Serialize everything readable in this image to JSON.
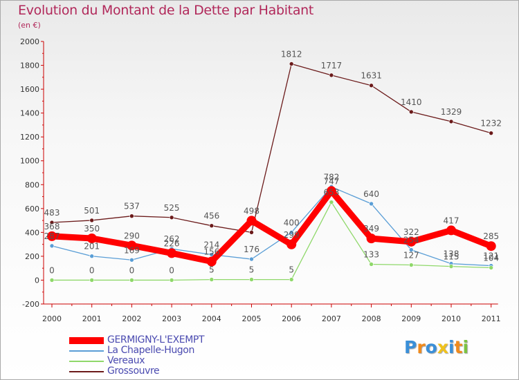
{
  "colors": {
    "title": "#b1285a",
    "axis": "#cc0000",
    "label": "#555555",
    "legend_text": "#4a4ab0"
  },
  "chart_data": {
    "type": "line",
    "title": "Evolution du Montant de la Dette par Habitant",
    "subtitle": "(en €)",
    "xlabel": "",
    "ylabel": "",
    "categories": [
      "2000",
      "2001",
      "2002",
      "2003",
      "2004",
      "2005",
      "2006",
      "2007",
      "2008",
      "2009",
      "2010",
      "2011"
    ],
    "ylim": [
      -200,
      2000
    ],
    "yticks": [
      "-200",
      "0",
      "200",
      "400",
      "600",
      "800",
      "1000",
      "1200",
      "1400",
      "1600",
      "1800",
      "2000"
    ],
    "grid": false,
    "legend_position": "bottom-left",
    "series": [
      {
        "name": "Grossouvre",
        "color": "#6b1a1a",
        "values": [
          483,
          501,
          537,
          525,
          456,
          400,
          1812,
          1717,
          1631,
          1410,
          1329,
          1232
        ],
        "labels": [
          "483",
          "501",
          "537",
          "525",
          "456",
          "",
          "1812",
          "1717",
          "1631",
          "1410",
          "1329",
          "1232"
        ]
      },
      {
        "name": "La Chapelle-Hugon",
        "color": "#5a9ed6",
        "values": [
          287,
          201,
          169,
          262,
          214,
          176,
          400,
          782,
          640,
          254,
          138,
          121
        ],
        "labels": [
          "287",
          "201",
          "169",
          "262",
          "214",
          "176",
          "400",
          "782",
          "640",
          "254",
          "138",
          "121"
        ]
      },
      {
        "name": "Vereaux",
        "color": "#8fd86a",
        "values": [
          0,
          0,
          0,
          0,
          5,
          5,
          5,
          653,
          133,
          127,
          115,
          104
        ],
        "labels": [
          "0",
          "0",
          "0",
          "0",
          "5",
          "5",
          "5",
          "653",
          "133",
          "127",
          "115",
          "104"
        ]
      },
      {
        "name": "GERMIGNY-L'EXEMPT",
        "color": "#ff0000",
        "values": [
          368,
          350,
          290,
          226,
          156,
          498,
          299,
          747,
          349,
          322,
          417,
          285
        ],
        "labels": [
          "368",
          "350",
          "290",
          "226",
          "156",
          "498",
          "299",
          "747",
          "349",
          "322",
          "417",
          "285"
        ]
      }
    ]
  },
  "legend": {
    "items": [
      {
        "label": "GERMIGNY-L'EXEMPT",
        "color": "#ff0000"
      },
      {
        "label": "La Chapelle-Hugon",
        "color": "#5a9ed6"
      },
      {
        "label": "Vereaux",
        "color": "#8fd86a"
      },
      {
        "label": "Grossouvre",
        "color": "#6b1a1a"
      }
    ]
  },
  "logo": {
    "text": "Proxiti",
    "letters": [
      {
        "ch": "P",
        "color": "#3a8fd8"
      },
      {
        "ch": "r",
        "color": "#f08a1c"
      },
      {
        "ch": "o",
        "color": "#3a8fd8"
      },
      {
        "ch": "x",
        "color": "#f0c21c"
      },
      {
        "ch": "i",
        "color": "#3a8fd8"
      },
      {
        "ch": "t",
        "color": "#f08a1c"
      },
      {
        "ch": "i",
        "color": "#7cc242"
      }
    ]
  }
}
